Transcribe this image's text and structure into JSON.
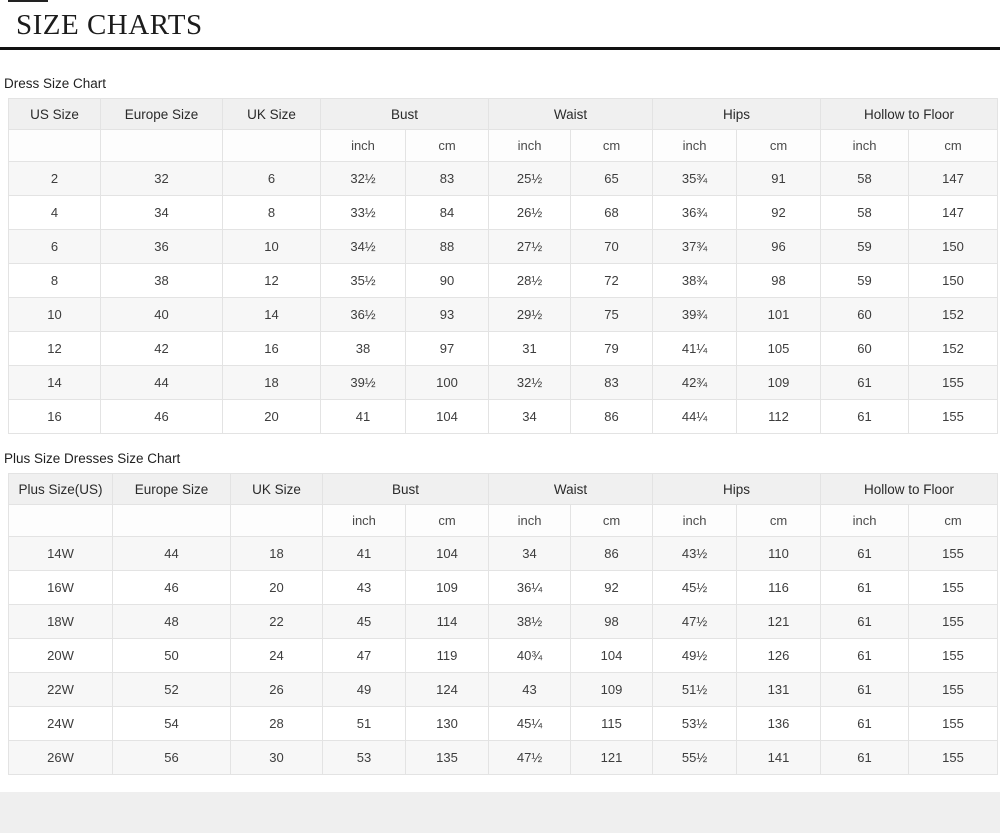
{
  "page": {
    "title": "SIZE CHARTS"
  },
  "colors": {
    "title_rule": "#111111",
    "header_bg": "#f0f0f0",
    "row_stripe": "#f7f7f7",
    "bottom_strip": "#efefef"
  },
  "tables": [
    {
      "caption": "Dress Size Chart",
      "col_headers": [
        "US Size",
        "Europe Size",
        "UK Size"
      ],
      "measure_headers": [
        "Bust",
        "Waist",
        "Hips",
        "Hollow to Floor"
      ],
      "unit_labels": [
        "inch",
        "cm"
      ],
      "rows": [
        [
          "2",
          "32",
          "6",
          "32½",
          "83",
          "25½",
          "65",
          "35¾",
          "91",
          "58",
          "147"
        ],
        [
          "4",
          "34",
          "8",
          "33½",
          "84",
          "26½",
          "68",
          "36¾",
          "92",
          "58",
          "147"
        ],
        [
          "6",
          "36",
          "10",
          "34½",
          "88",
          "27½",
          "70",
          "37¾",
          "96",
          "59",
          "150"
        ],
        [
          "8",
          "38",
          "12",
          "35½",
          "90",
          "28½",
          "72",
          "38¾",
          "98",
          "59",
          "150"
        ],
        [
          "10",
          "40",
          "14",
          "36½",
          "93",
          "29½",
          "75",
          "39¾",
          "101",
          "60",
          "152"
        ],
        [
          "12",
          "42",
          "16",
          "38",
          "97",
          "31",
          "79",
          "41¼",
          "105",
          "60",
          "152"
        ],
        [
          "14",
          "44",
          "18",
          "39½",
          "100",
          "32½",
          "83",
          "42¾",
          "109",
          "61",
          "155"
        ],
        [
          "16",
          "46",
          "20",
          "41",
          "104",
          "34",
          "86",
          "44¼",
          "112",
          "61",
          "155"
        ]
      ]
    },
    {
      "caption": "Plus Size Dresses Size Chart",
      "col_headers": [
        "Plus Size(US)",
        "Europe Size",
        "UK Size"
      ],
      "measure_headers": [
        "Bust",
        "Waist",
        "Hips",
        "Hollow to Floor"
      ],
      "unit_labels": [
        "inch",
        "cm"
      ],
      "rows": [
        [
          "14W",
          "44",
          "18",
          "41",
          "104",
          "34",
          "86",
          "43½",
          "110",
          "61",
          "155"
        ],
        [
          "16W",
          "46",
          "20",
          "43",
          "109",
          "36¼",
          "92",
          "45½",
          "116",
          "61",
          "155"
        ],
        [
          "18W",
          "48",
          "22",
          "45",
          "114",
          "38½",
          "98",
          "47½",
          "121",
          "61",
          "155"
        ],
        [
          "20W",
          "50",
          "24",
          "47",
          "119",
          "40¾",
          "104",
          "49½",
          "126",
          "61",
          "155"
        ],
        [
          "22W",
          "52",
          "26",
          "49",
          "124",
          "43",
          "109",
          "51½",
          "131",
          "61",
          "155"
        ],
        [
          "24W",
          "54",
          "28",
          "51",
          "130",
          "45¼",
          "115",
          "53½",
          "136",
          "61",
          "155"
        ],
        [
          "26W",
          "56",
          "30",
          "53",
          "135",
          "47½",
          "121",
          "55½",
          "141",
          "61",
          "155"
        ]
      ]
    }
  ]
}
